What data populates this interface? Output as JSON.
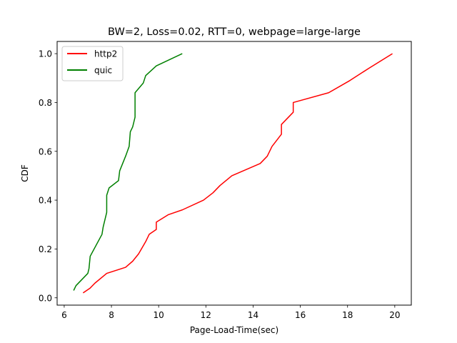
{
  "chart_data": {
    "type": "line",
    "title": "BW=2, Loss=0.02, RTT=0, webpage=large-large",
    "xlabel": "Page-Load-Time(sec)",
    "ylabel": "CDF",
    "xlim": [
      5.7,
      20.7
    ],
    "ylim": [
      -0.03,
      1.05
    ],
    "xticks": [
      6,
      8,
      10,
      12,
      14,
      16,
      18,
      20
    ],
    "xtick_labels": [
      "6",
      "8",
      "10",
      "12",
      "14",
      "16",
      "18",
      "20"
    ],
    "yticks": [
      0.0,
      0.2,
      0.4,
      0.6,
      0.8,
      1.0
    ],
    "ytick_labels": [
      "0.0",
      "0.2",
      "0.4",
      "0.6",
      "0.8",
      "1.0"
    ],
    "grid": false,
    "legend_placement": "top-left",
    "series": [
      {
        "name": "http2",
        "color": "#ff0000",
        "x": [
          6.8,
          7.1,
          7.3,
          7.8,
          8.6,
          8.9,
          9.15,
          9.45,
          9.6,
          9.9,
          9.9,
          10.4,
          11.0,
          11.9,
          12.3,
          12.6,
          13.1,
          14.3,
          14.6,
          14.8,
          15.2,
          15.2,
          15.7,
          15.7,
          17.2,
          18.1,
          18.9,
          19.9
        ],
        "y": [
          0.02,
          0.04,
          0.06,
          0.1,
          0.125,
          0.15,
          0.18,
          0.23,
          0.26,
          0.28,
          0.31,
          0.34,
          0.36,
          0.4,
          0.43,
          0.46,
          0.5,
          0.55,
          0.58,
          0.62,
          0.67,
          0.71,
          0.76,
          0.8,
          0.84,
          0.89,
          0.94,
          1.0
        ]
      },
      {
        "name": "quic",
        "color": "#008000",
        "x": [
          6.4,
          6.5,
          6.8,
          7.0,
          7.05,
          7.1,
          7.6,
          7.65,
          7.8,
          7.8,
          7.9,
          8.3,
          8.35,
          8.6,
          8.75,
          8.8,
          8.9,
          8.95,
          9.0,
          9.0,
          9.35,
          9.45,
          9.9,
          11.0
        ],
        "y": [
          0.03,
          0.05,
          0.08,
          0.1,
          0.12,
          0.17,
          0.26,
          0.29,
          0.35,
          0.42,
          0.45,
          0.48,
          0.52,
          0.58,
          0.62,
          0.68,
          0.7,
          0.72,
          0.74,
          0.84,
          0.88,
          0.91,
          0.95,
          1.0
        ]
      }
    ]
  }
}
